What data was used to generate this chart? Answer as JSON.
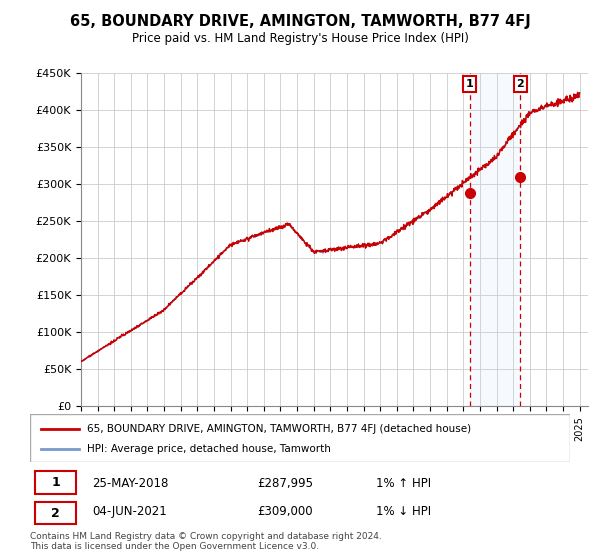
{
  "title": "65, BOUNDARY DRIVE, AMINGTON, TAMWORTH, B77 4FJ",
  "subtitle": "Price paid vs. HM Land Registry's House Price Index (HPI)",
  "ylim": [
    0,
    450000
  ],
  "xlim_start": 1995,
  "xlim_end": 2025.5,
  "legend_line1": "65, BOUNDARY DRIVE, AMINGTON, TAMWORTH, B77 4FJ (detached house)",
  "legend_line2": "HPI: Average price, detached house, Tamworth",
  "sale1_date": "25-MAY-2018",
  "sale1_price": "£287,995",
  "sale1_hpi": "1% ↑ HPI",
  "sale1_year": 2018.38,
  "sale1_value": 287995,
  "sale2_date": "04-JUN-2021",
  "sale2_price": "£309,000",
  "sale2_hpi": "1% ↓ HPI",
  "sale2_year": 2021.42,
  "sale2_value": 309000,
  "footer": "Contains HM Land Registry data © Crown copyright and database right 2024.\nThis data is licensed under the Open Government Licence v3.0.",
  "line_color_red": "#cc0000",
  "line_color_blue": "#7799cc",
  "shade_color": "#ddeeff",
  "marker_box_color": "#cc0000",
  "grid_color": "#cccccc"
}
